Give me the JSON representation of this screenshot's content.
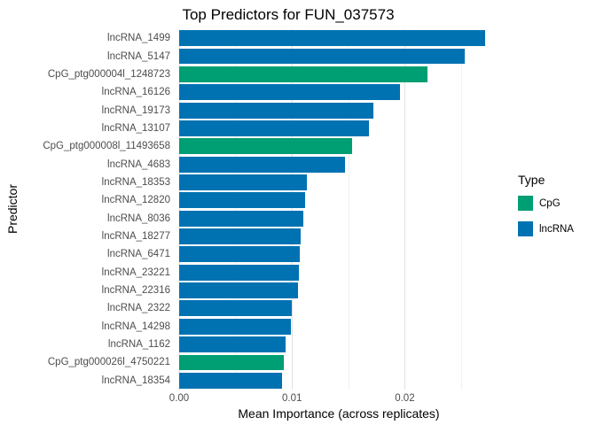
{
  "chart_data": {
    "type": "bar",
    "orientation": "horizontal",
    "title": "Top Predictors for FUN_037573",
    "xlabel": "Mean Importance (across replicates)",
    "ylabel": "Predictor",
    "xlim": [
      0,
      0.0283
    ],
    "x_ticks": [
      0,
      0.01,
      0.02
    ],
    "x_tick_labels": [
      "0.00",
      "0.01",
      "0.02"
    ],
    "x_minor_ticks": [
      0.005,
      0.015,
      0.025
    ],
    "grid": true,
    "legend": {
      "title": "Type",
      "position": "right",
      "entries": [
        {
          "label": "CpG",
          "color": "#009E73"
        },
        {
          "label": "lncRNA",
          "color": "#0072B2"
        }
      ]
    },
    "bars": [
      {
        "label": "lncRNA_1499",
        "value": 0.0271,
        "type": "lncRNA"
      },
      {
        "label": "lncRNA_5147",
        "value": 0.0253,
        "type": "lncRNA"
      },
      {
        "label": "CpG_ptg000004l_1248723",
        "value": 0.022,
        "type": "CpG"
      },
      {
        "label": "lncRNA_16126",
        "value": 0.0196,
        "type": "lncRNA"
      },
      {
        "label": "lncRNA_19173",
        "value": 0.0172,
        "type": "lncRNA"
      },
      {
        "label": "lncRNA_13107",
        "value": 0.0168,
        "type": "lncRNA"
      },
      {
        "label": "CpG_ptg000008l_11493658",
        "value": 0.0153,
        "type": "CpG"
      },
      {
        "label": "lncRNA_4683",
        "value": 0.0147,
        "type": "lncRNA"
      },
      {
        "label": "lncRNA_18353",
        "value": 0.0113,
        "type": "lncRNA"
      },
      {
        "label": "lncRNA_12820",
        "value": 0.0112,
        "type": "lncRNA"
      },
      {
        "label": "lncRNA_8036",
        "value": 0.011,
        "type": "lncRNA"
      },
      {
        "label": "lncRNA_18277",
        "value": 0.0108,
        "type": "lncRNA"
      },
      {
        "label": "lncRNA_6471",
        "value": 0.0107,
        "type": "lncRNA"
      },
      {
        "label": "lncRNA_23221",
        "value": 0.0106,
        "type": "lncRNA"
      },
      {
        "label": "lncRNA_22316",
        "value": 0.0105,
        "type": "lncRNA"
      },
      {
        "label": "lncRNA_2322",
        "value": 0.01,
        "type": "lncRNA"
      },
      {
        "label": "lncRNA_14298",
        "value": 0.0099,
        "type": "lncRNA"
      },
      {
        "label": "lncRNA_1162",
        "value": 0.0094,
        "type": "lncRNA"
      },
      {
        "label": "CpG_ptg000026l_4750221",
        "value": 0.0093,
        "type": "CpG"
      },
      {
        "label": "lncRNA_18354",
        "value": 0.0091,
        "type": "lncRNA"
      }
    ]
  }
}
